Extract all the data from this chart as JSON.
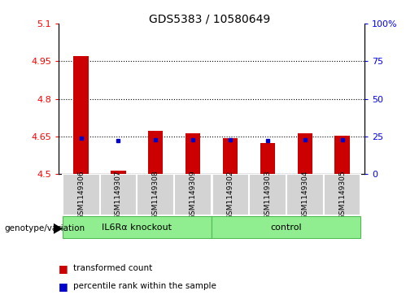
{
  "title": "GDS5383 / 10580649",
  "samples": [
    "GSM1149306",
    "GSM1149307",
    "GSM1149308",
    "GSM1149309",
    "GSM1149302",
    "GSM1149303",
    "GSM1149304",
    "GSM1149305"
  ],
  "red_values": [
    4.972,
    4.513,
    4.672,
    4.663,
    4.642,
    4.623,
    4.663,
    4.652
  ],
  "blue_values": [
    4.642,
    4.632,
    4.638,
    4.638,
    4.638,
    4.635,
    4.638,
    4.638
  ],
  "ymin": 4.5,
  "ymax": 5.1,
  "y_ticks_left": [
    4.5,
    4.65,
    4.8,
    4.95,
    5.1
  ],
  "right_ticks_val": [
    4.5,
    4.65,
    4.8,
    4.95,
    5.1
  ],
  "right_ticks_label": [
    "0",
    "25",
    "50",
    "75",
    "100%"
  ],
  "bar_width": 0.4,
  "bar_color": "#CC0000",
  "dot_color": "#0000CC",
  "plot_bg_color": "#FFFFFF",
  "gray_box_color": "#D3D3D3",
  "green_box_color": "#90EE90",
  "group1_label": "IL6Rα knockout",
  "group2_label": "control",
  "genotype_label": "genotype/variation",
  "legend1_color": "#CC0000",
  "legend1_label": "transformed count",
  "legend2_color": "#0000CC",
  "legend2_label": "percentile rank within the sample"
}
